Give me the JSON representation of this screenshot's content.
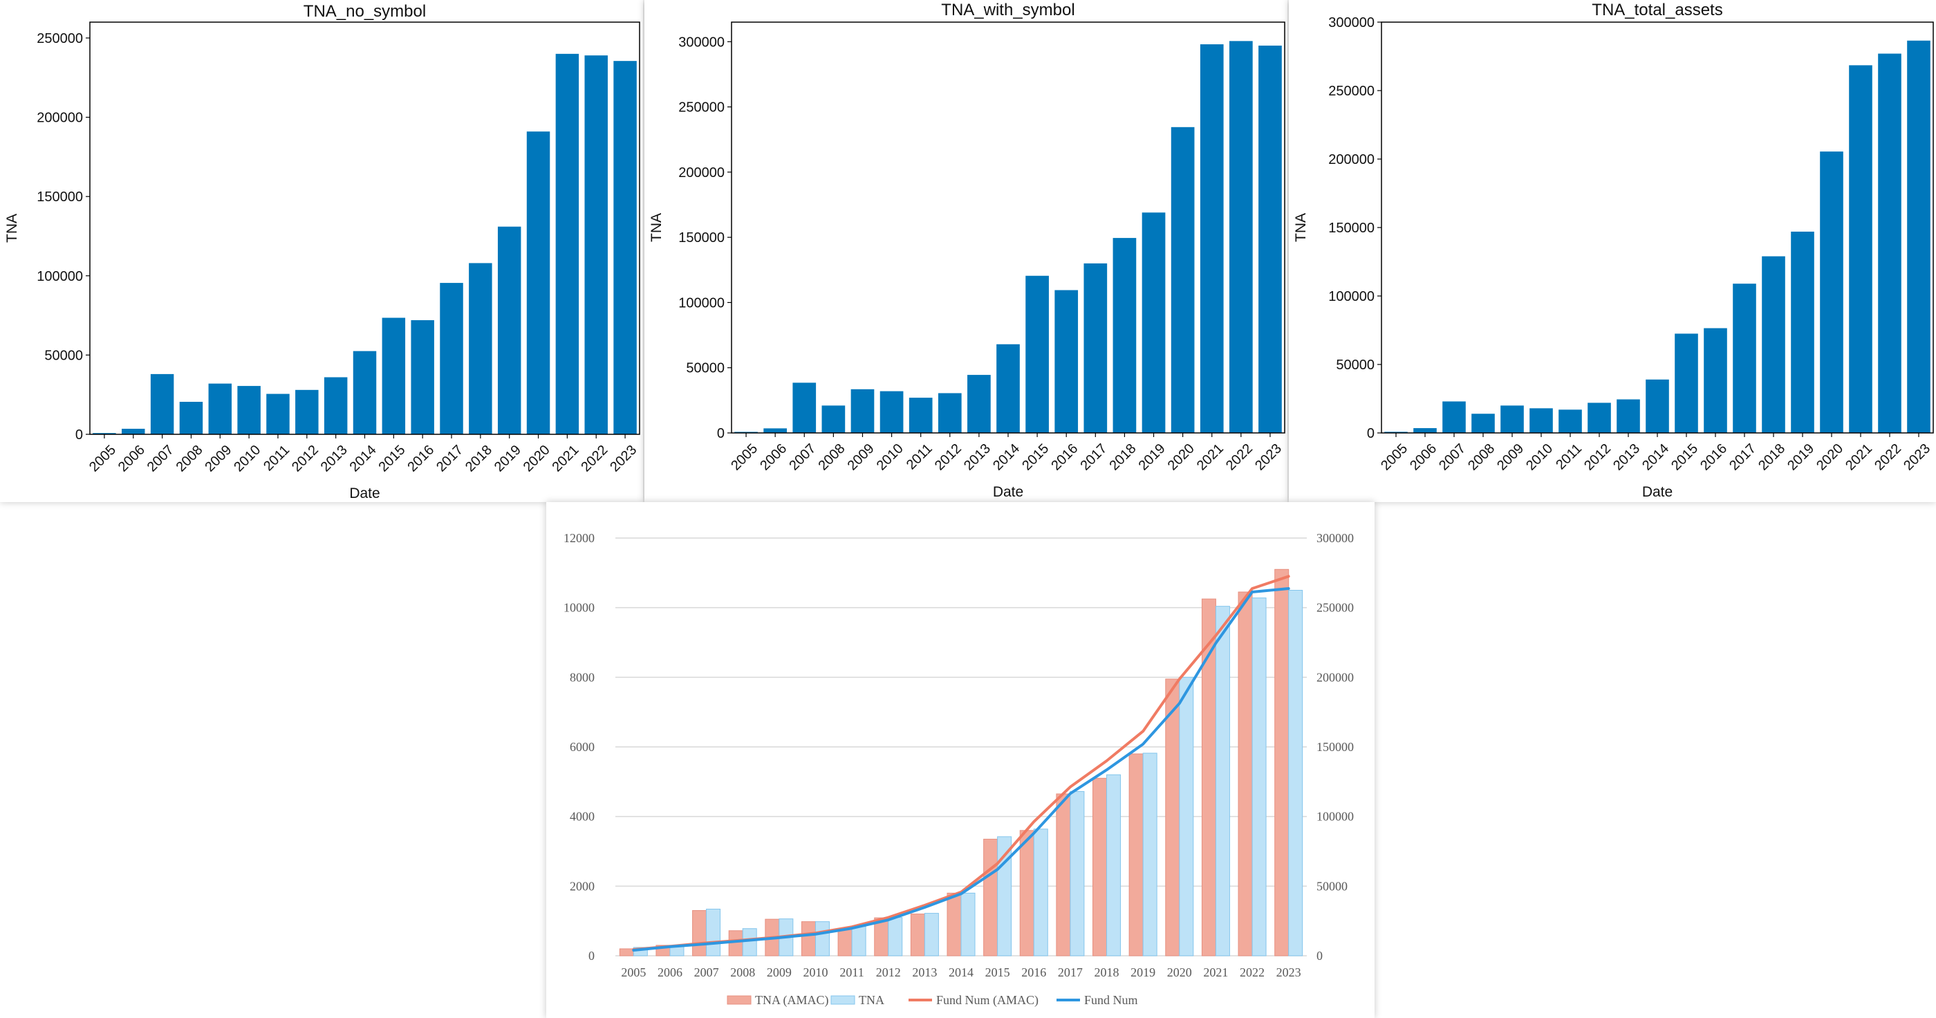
{
  "chart_data": [
    {
      "type": "bar",
      "title": "TNA_no_symbol",
      "xlabel": "Date",
      "ylabel": "TNA",
      "categories": [
        "2005",
        "2006",
        "2007",
        "2008",
        "2009",
        "2010",
        "2011",
        "2012",
        "2013",
        "2014",
        "2015",
        "2016",
        "2017",
        "2018",
        "2019",
        "2020",
        "2021",
        "2022",
        "2023"
      ],
      "values": [
        800,
        3500,
        38000,
        20500,
        32000,
        30500,
        25500,
        28000,
        36000,
        52500,
        73500,
        72000,
        95500,
        108000,
        131000,
        191000,
        240000,
        239000,
        235500
      ],
      "ylim": [
        0,
        260000
      ],
      "yticks": [
        "0",
        "50000",
        "100000",
        "150000",
        "200000",
        "250000"
      ],
      "grid": false,
      "bar_color": "#0077bb"
    },
    {
      "type": "bar",
      "title": "TNA_with_symbol",
      "xlabel": "Date",
      "ylabel": "TNA",
      "categories": [
        "2005",
        "2006",
        "2007",
        "2008",
        "2009",
        "2010",
        "2011",
        "2012",
        "2013",
        "2014",
        "2015",
        "2016",
        "2017",
        "2018",
        "2019",
        "2020",
        "2021",
        "2022",
        "2023"
      ],
      "values": [
        800,
        3500,
        38500,
        21000,
        33500,
        32000,
        27000,
        30500,
        44500,
        68000,
        120500,
        109500,
        130000,
        149500,
        169000,
        234500,
        298000,
        300500,
        297000
      ],
      "ylim": [
        0,
        315000
      ],
      "yticks": [
        "0",
        "50000",
        "100000",
        "150000",
        "200000",
        "250000",
        "300000"
      ],
      "grid": false,
      "bar_color": "#0077bb"
    },
    {
      "type": "bar",
      "title": "TNA_total_assets",
      "xlabel": "Date",
      "ylabel": "TNA",
      "categories": [
        "2005",
        "2006",
        "2007",
        "2008",
        "2009",
        "2010",
        "2011",
        "2012",
        "2013",
        "2014",
        "2015",
        "2016",
        "2017",
        "2018",
        "2019",
        "2020",
        "2021",
        "2022",
        "2023"
      ],
      "values": [
        800,
        3500,
        23000,
        14000,
        20000,
        18000,
        17000,
        22000,
        24500,
        39000,
        72500,
        76500,
        109000,
        129000,
        147000,
        205500,
        268500,
        277000,
        286500
      ],
      "ylim": [
        0,
        300000
      ],
      "yticks": [
        "0",
        "50000",
        "100000",
        "150000",
        "200000",
        "250000",
        "300000"
      ],
      "grid": false,
      "bar_color": "#0077bb"
    },
    {
      "type": "bar+line",
      "categories": [
        "2005",
        "2006",
        "2007",
        "2008",
        "2009",
        "2010",
        "2011",
        "2012",
        "2013",
        "2014",
        "2015",
        "2016",
        "2017",
        "2018",
        "2019",
        "2020",
        "2021",
        "2022",
        "2023"
      ],
      "y_left": {
        "min": 0,
        "max": 12000,
        "ticks": [
          "0",
          "2000",
          "4000",
          "6000",
          "8000",
          "10000",
          "12000"
        ]
      },
      "y_right": {
        "min": 0,
        "max": 300000,
        "ticks": [
          "0",
          "50000",
          "100000",
          "150000",
          "200000",
          "250000",
          "300000"
        ]
      },
      "grid": true,
      "legend_position": "bottom",
      "series": [
        {
          "name": "TNA (AMAC)",
          "type": "bar",
          "axis": "left",
          "color": "#f2aa9b",
          "stroke": "#e79080",
          "values": [
            200,
            300,
            1300,
            720,
            1050,
            980,
            760,
            1090,
            1200,
            1800,
            3350,
            3600,
            4650,
            5100,
            5800,
            7950,
            10250,
            10450,
            11100
          ]
        },
        {
          "name": "TNA",
          "type": "bar",
          "axis": "right",
          "color": "#bde2f7",
          "stroke": "#84c5ec",
          "values": [
            6000,
            7500,
            33500,
            19500,
            26500,
            24500,
            21000,
            27500,
            30500,
            45000,
            85500,
            91000,
            118000,
            130000,
            145500,
            200000,
            251000,
            257000,
            262500
          ]
        },
        {
          "name": "Fund Num (AMAC)",
          "type": "line",
          "axis": "left",
          "color": "#f07b63",
          "values": [
            180,
            270,
            370,
            450,
            540,
            650,
            830,
            1100,
            1450,
            1830,
            2650,
            3850,
            4850,
            5600,
            6450,
            7950,
            9200,
            10550,
            10900
          ]
        },
        {
          "name": "Fund Num",
          "type": "line",
          "axis": "left",
          "color": "#2e96e0",
          "values": [
            160,
            260,
            340,
            430,
            520,
            620,
            790,
            1030,
            1390,
            1780,
            2480,
            3520,
            4660,
            5340,
            6080,
            7250,
            8980,
            10450,
            10550
          ]
        }
      ]
    }
  ]
}
